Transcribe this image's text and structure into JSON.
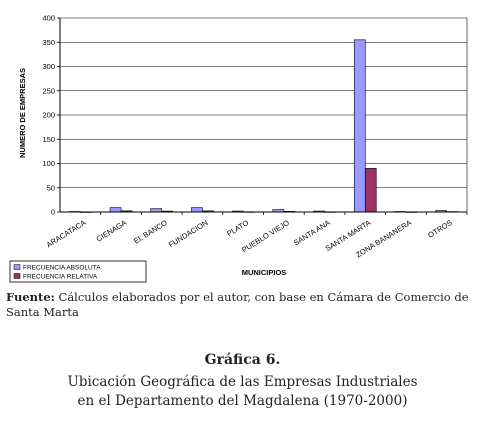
{
  "chart_data": {
    "type": "bar",
    "ylabel": "NUMERO DE EMPRESAS",
    "xlabel": "MUNICIPIOS",
    "ylim": [
      0,
      400
    ],
    "yticks": [
      0,
      50,
      100,
      150,
      200,
      250,
      300,
      350,
      400
    ],
    "grid": true,
    "legend_position": "bottom-left",
    "categories": [
      "ARACATACA",
      "CIENAGA",
      "EL BANCO",
      "FUNDACION",
      "PLATO",
      "PUEBLO VIEJO",
      "SANTA ANA",
      "SANTA MARTA",
      "ZONA BANANERA",
      "OTROS"
    ],
    "series": [
      {
        "name": "FRECUENCIA ABSOLUTA",
        "color": "#9999ff",
        "values": [
          1,
          9,
          7,
          9,
          2,
          5,
          2,
          355,
          1,
          3
        ]
      },
      {
        "name": "FRECUENCIA RELATIVA",
        "color": "#993366",
        "values": [
          0.3,
          2.4,
          1.9,
          2.4,
          0.5,
          1.3,
          0.5,
          89.9,
          0.3,
          0.8
        ]
      }
    ]
  },
  "source": {
    "label": "Fuente:",
    "text": " Cálculos elaborados por el autor, con base en Cámara de Comercio de Santa Marta"
  },
  "figure": {
    "number": "Gráfica 6.",
    "caption_line1": "Ubicación Geográfica de las Empresas Industriales",
    "caption_line2": "en el Departamento del Magdalena (1970-2000)"
  }
}
